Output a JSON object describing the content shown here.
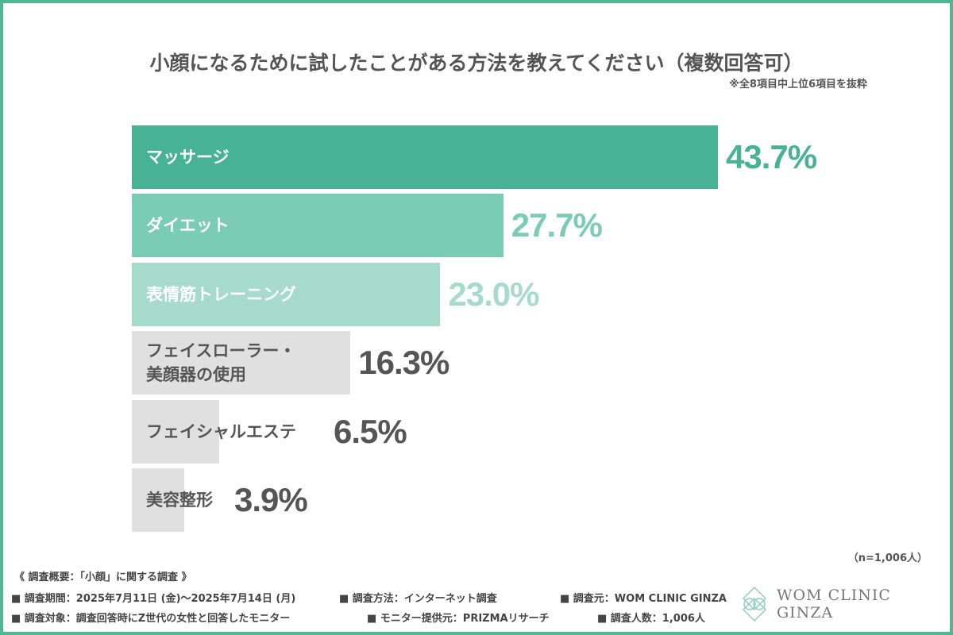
{
  "chart_data": {
    "type": "bar",
    "orientation": "horizontal",
    "title": "小顔になるために試したことがある方法を教えてください（複数回答可）",
    "subtitle": "※全8項目中上位6項目を抜粋",
    "categories": [
      "マッサージ",
      "ダイエット",
      "表情筋トレーニング",
      "フェイスローラー・\n美顔器の使用",
      "フェイシャルエステ",
      "美容整形"
    ],
    "values": [
      43.7,
      27.7,
      23.0,
      16.3,
      6.5,
      3.9
    ],
    "value_labels": [
      "43.7%",
      "27.7%",
      "23.0%",
      "16.3%",
      "6.5%",
      "3.9%"
    ],
    "bar_colors": [
      "#47b294",
      "#7acdb3",
      "#a6dbcb",
      "#e0e0e0",
      "#e0e0e0",
      "#e0e0e0"
    ],
    "label_colors": [
      "#ffffff",
      "#ffffff",
      "#ffffff",
      "#555555",
      "#555555",
      "#555555"
    ],
    "value_colors": [
      "#47b294",
      "#7acdb3",
      "#a6dbcb",
      "#555555",
      "#555555",
      "#555555"
    ],
    "xlabel": "",
    "ylabel": "",
    "xlim": [
      0,
      43.7
    ]
  },
  "sample_note": "（n=1,006人）",
  "footer": {
    "heading": "《 調査概要：「小顔」に関する調査 》",
    "period": "■ 調査期間：2025年7月11日 (金)〜2025年7月14日 (月)",
    "method": "■ 調査方法：インターネット調査",
    "source": "■ 調査元：WOM CLINIC GINZA",
    "target": "■ 調査対象：調査回答時にZ世代の女性と回答したモニター",
    "provider": "■ モニター提供元：PRIZMAリサーチ",
    "count": "■ 調査人数：1,006人"
  },
  "logo": {
    "text": "WOM CLINIC GINZA",
    "color": "#8fcfb8"
  },
  "border_color": "#4db892"
}
